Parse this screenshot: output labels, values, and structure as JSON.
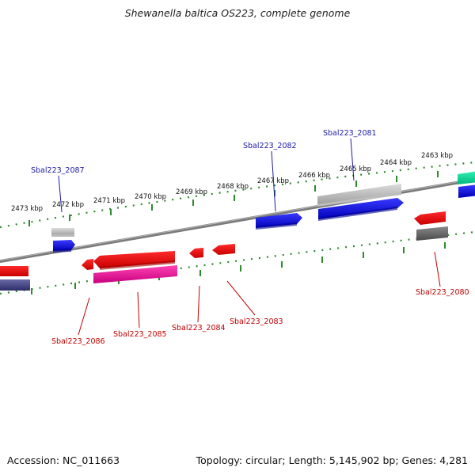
{
  "title": "Shewanella baltica OS223, complete genome",
  "footer": {
    "accession": "Accession: NC_011663",
    "summary": "Topology: circular; Length: 5,145,902 bp; Genes: 4,281"
  },
  "colors": {
    "backbone": "#7a7a7a",
    "ticks": "#2d8a2d",
    "label_top": "#1a1aa6",
    "label_bottom": "#c00000"
  },
  "ruler": [
    {
      "label": "2473 kbp"
    },
    {
      "label": "2472 kbp"
    },
    {
      "label": "2471 kbp"
    },
    {
      "label": "2470 kbp"
    },
    {
      "label": "2469 kbp"
    },
    {
      "label": "2468 kbp"
    },
    {
      "label": "2467 kbp"
    },
    {
      "label": "2466 kbp"
    },
    {
      "label": "2465 kbp"
    },
    {
      "label": "2464 kbp"
    },
    {
      "label": "2463 kbp"
    }
  ],
  "gene_labels": {
    "sbal223_2087": "Sbal223_2087",
    "sbal223_2082": "Sbal223_2082",
    "sbal223_2081": "Sbal223_2081",
    "sbal223_2080": "Sbal223_2080",
    "sbal223_2086": "Sbal223_2086",
    "sbal223_2085": "Sbal223_2085",
    "sbal223_2084": "Sbal223_2084",
    "sbal223_2083": "Sbal223_2083"
  }
}
